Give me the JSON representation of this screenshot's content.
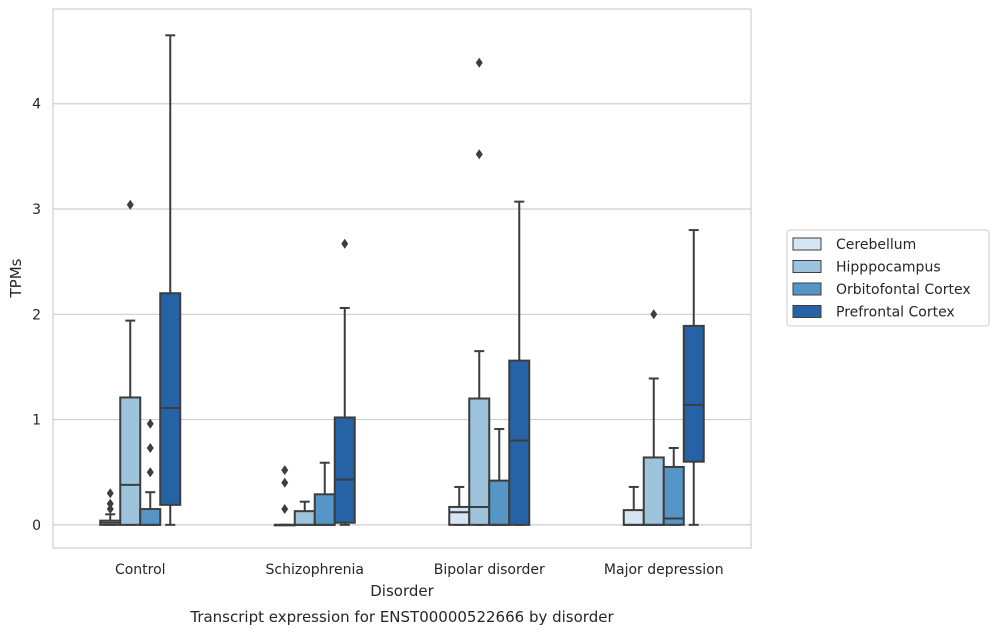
{
  "caption": "Transcript expression for ENST00000522666 by disorder",
  "colors": {
    "Cerebellum": "#d6e5f3",
    "Hipppocampus": "#9dc3dd",
    "Orbitofontal Cortex": "#5596c6",
    "Prefrontal Cortex": "#2563a6",
    "edge": "#3d3d3d",
    "grid": "#cfcfcf"
  },
  "chart_data": {
    "type": "box",
    "title": "",
    "xlabel": "Disorder",
    "ylabel": "TPMs",
    "ylim": [
      -0.22,
      4.9
    ],
    "yticks": [
      0,
      1,
      2,
      3,
      4
    ],
    "grid": true,
    "legend_position": "right",
    "categories": [
      "Control",
      "Schizophrenia",
      "Bipolar disorder",
      "Major depression"
    ],
    "series": [
      {
        "name": "Cerebellum",
        "boxes": [
          {
            "whisker_low": 0,
            "q1": 0,
            "median": 0.02,
            "q3": 0.04,
            "whisker_high": 0.1,
            "outliers": [
              0.15,
              0.2,
              0.3
            ]
          },
          {
            "whisker_low": 0,
            "q1": 0,
            "median": 0,
            "q3": 0,
            "whisker_high": 0,
            "outliers": [
              0.15,
              0.4,
              0.52
            ]
          },
          {
            "whisker_low": 0,
            "q1": 0,
            "median": 0.12,
            "q3": 0.17,
            "whisker_high": 0.36,
            "outliers": []
          },
          {
            "whisker_low": 0,
            "q1": 0,
            "median": 0,
            "q3": 0.14,
            "whisker_high": 0.36,
            "outliers": []
          }
        ]
      },
      {
        "name": "Hipppocampus",
        "boxes": [
          {
            "whisker_low": 0,
            "q1": 0,
            "median": 0.38,
            "q3": 1.21,
            "whisker_high": 1.94,
            "outliers": [
              3.04
            ]
          },
          {
            "whisker_low": 0,
            "q1": 0,
            "median": 0,
            "q3": 0.13,
            "whisker_high": 0.22,
            "outliers": []
          },
          {
            "whisker_low": 0,
            "q1": 0,
            "median": 0.17,
            "q3": 1.2,
            "whisker_high": 1.65,
            "outliers": [
              3.52,
              4.39
            ]
          },
          {
            "whisker_low": 0,
            "q1": 0,
            "median": 0,
            "q3": 0.64,
            "whisker_high": 1.39,
            "outliers": [
              2.0
            ]
          }
        ]
      },
      {
        "name": "Orbitofontal Cortex",
        "boxes": [
          {
            "whisker_low": 0,
            "q1": 0,
            "median": 0,
            "q3": 0.15,
            "whisker_high": 0.31,
            "outliers": [
              0.5,
              0.73,
              0.96
            ]
          },
          {
            "whisker_low": 0,
            "q1": 0,
            "median": 0,
            "q3": 0.29,
            "whisker_high": 0.59,
            "outliers": []
          },
          {
            "whisker_low": 0,
            "q1": 0,
            "median": 0,
            "q3": 0.42,
            "whisker_high": 0.91,
            "outliers": []
          },
          {
            "whisker_low": 0,
            "q1": 0,
            "median": 0.06,
            "q3": 0.55,
            "whisker_high": 0.73,
            "outliers": []
          }
        ]
      },
      {
        "name": "Prefrontal Cortex",
        "boxes": [
          {
            "whisker_low": 0,
            "q1": 0.19,
            "median": 1.11,
            "q3": 2.2,
            "whisker_high": 4.65,
            "outliers": []
          },
          {
            "whisker_low": 0,
            "q1": 0.02,
            "median": 0.43,
            "q3": 1.02,
            "whisker_high": 2.06,
            "outliers": [
              2.67
            ]
          },
          {
            "whisker_low": 0,
            "q1": 0,
            "median": 0.8,
            "q3": 1.56,
            "whisker_high": 3.07,
            "outliers": []
          },
          {
            "whisker_low": 0,
            "q1": 0.6,
            "median": 1.14,
            "q3": 1.89,
            "whisker_high": 2.8,
            "outliers": []
          }
        ]
      }
    ]
  }
}
